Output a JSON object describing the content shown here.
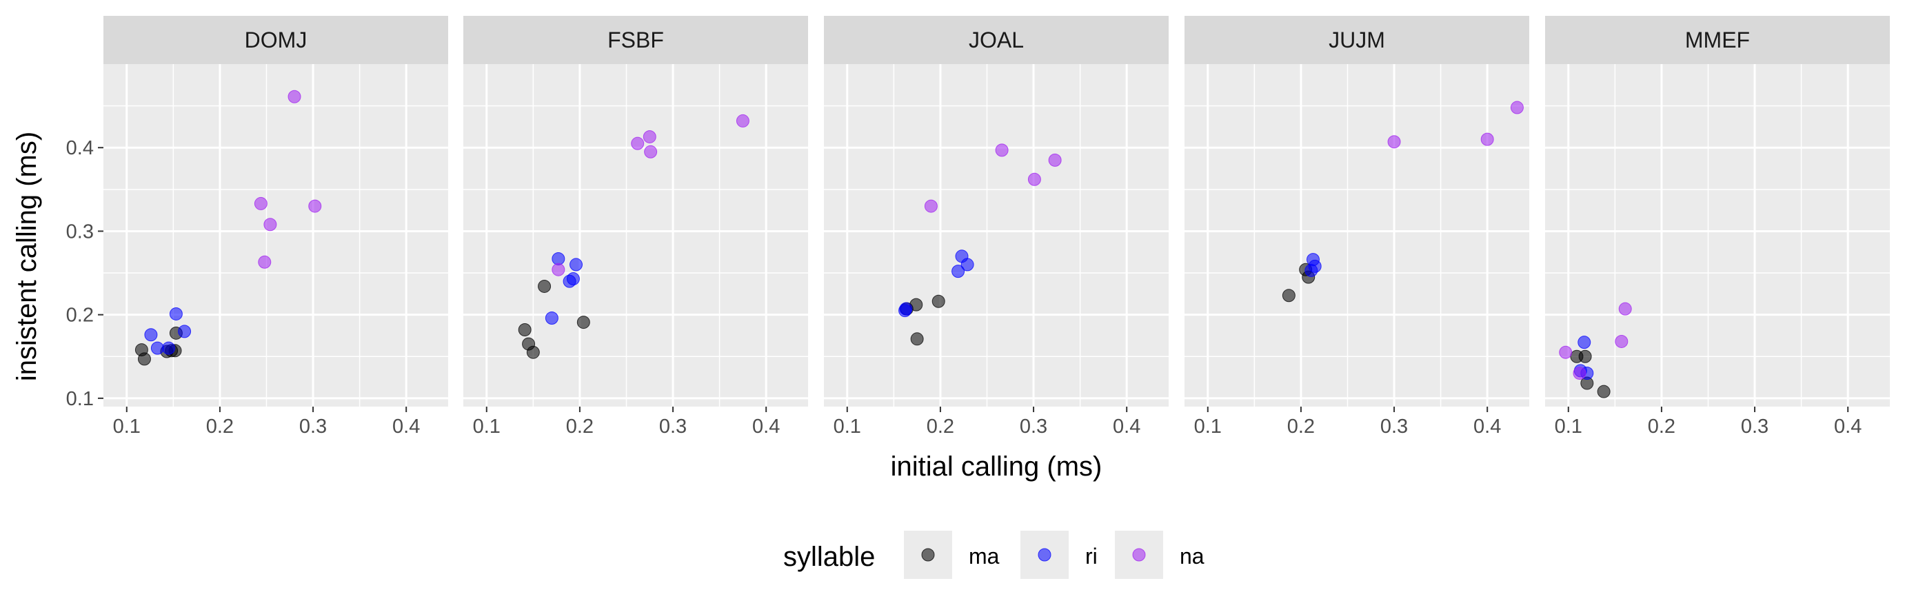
{
  "chart_data": {
    "type": "scatter",
    "xlabel": "initial calling (ms)",
    "ylabel": "insistent calling (ms)",
    "xlim": [
      0.075,
      0.445
    ],
    "ylim": [
      0.09,
      0.5
    ],
    "x_ticks": [
      0.1,
      0.2,
      0.3,
      0.4
    ],
    "x_tick_labels": [
      "0.1",
      "0.2",
      "0.3",
      "0.4"
    ],
    "y_ticks": [
      0.1,
      0.2,
      0.3,
      0.4
    ],
    "y_tick_labels": [
      "0.1",
      "0.2",
      "0.3",
      "0.4"
    ],
    "grid": true,
    "legend": {
      "title": "syllable",
      "placement": "bottom",
      "entries": [
        {
          "key": "ma",
          "label": "ma",
          "color": "#000000"
        },
        {
          "key": "ri",
          "label": "ri",
          "color": "#0000FF"
        },
        {
          "key": "na",
          "label": "na",
          "color": "#A020F0"
        }
      ]
    },
    "panels": [
      {
        "name": "DOMJ",
        "points": [
          {
            "syllable": "ma",
            "x": 0.116,
            "y": 0.158
          },
          {
            "syllable": "ma",
            "x": 0.119,
            "y": 0.147
          },
          {
            "syllable": "ma",
            "x": 0.143,
            "y": 0.156
          },
          {
            "syllable": "ma",
            "x": 0.148,
            "y": 0.157
          },
          {
            "syllable": "ma",
            "x": 0.152,
            "y": 0.157
          },
          {
            "syllable": "ma",
            "x": 0.153,
            "y": 0.178
          },
          {
            "syllable": "ri",
            "x": 0.126,
            "y": 0.176
          },
          {
            "syllable": "ri",
            "x": 0.133,
            "y": 0.16
          },
          {
            "syllable": "ri",
            "x": 0.145,
            "y": 0.16
          },
          {
            "syllable": "ri",
            "x": 0.153,
            "y": 0.201
          },
          {
            "syllable": "ri",
            "x": 0.162,
            "y": 0.18
          },
          {
            "syllable": "na",
            "x": 0.244,
            "y": 0.333
          },
          {
            "syllable": "na",
            "x": 0.248,
            "y": 0.263
          },
          {
            "syllable": "na",
            "x": 0.254,
            "y": 0.308
          },
          {
            "syllable": "na",
            "x": 0.28,
            "y": 0.461
          },
          {
            "syllable": "na",
            "x": 0.302,
            "y": 0.33
          }
        ]
      },
      {
        "name": "FSBF",
        "points": [
          {
            "syllable": "ma",
            "x": 0.141,
            "y": 0.182
          },
          {
            "syllable": "ma",
            "x": 0.145,
            "y": 0.165
          },
          {
            "syllable": "ma",
            "x": 0.15,
            "y": 0.155
          },
          {
            "syllable": "ma",
            "x": 0.162,
            "y": 0.234
          },
          {
            "syllable": "ma",
            "x": 0.204,
            "y": 0.191
          },
          {
            "syllable": "ri",
            "x": 0.17,
            "y": 0.196
          },
          {
            "syllable": "ri",
            "x": 0.177,
            "y": 0.267
          },
          {
            "syllable": "ri",
            "x": 0.189,
            "y": 0.24
          },
          {
            "syllable": "ri",
            "x": 0.193,
            "y": 0.243
          },
          {
            "syllable": "ri",
            "x": 0.196,
            "y": 0.26
          },
          {
            "syllable": "na",
            "x": 0.177,
            "y": 0.254
          },
          {
            "syllable": "na",
            "x": 0.262,
            "y": 0.405
          },
          {
            "syllable": "na",
            "x": 0.275,
            "y": 0.413
          },
          {
            "syllable": "na",
            "x": 0.276,
            "y": 0.395
          },
          {
            "syllable": "na",
            "x": 0.375,
            "y": 0.432
          }
        ]
      },
      {
        "name": "JOAL",
        "points": [
          {
            "syllable": "ma",
            "x": 0.164,
            "y": 0.207
          },
          {
            "syllable": "ma",
            "x": 0.174,
            "y": 0.212
          },
          {
            "syllable": "ma",
            "x": 0.175,
            "y": 0.171
          },
          {
            "syllable": "ma",
            "x": 0.198,
            "y": 0.216
          },
          {
            "syllable": "ri",
            "x": 0.162,
            "y": 0.205
          },
          {
            "syllable": "ri",
            "x": 0.163,
            "y": 0.207
          },
          {
            "syllable": "ri",
            "x": 0.219,
            "y": 0.252
          },
          {
            "syllable": "ri",
            "x": 0.223,
            "y": 0.27
          },
          {
            "syllable": "ri",
            "x": 0.229,
            "y": 0.26
          },
          {
            "syllable": "na",
            "x": 0.19,
            "y": 0.33
          },
          {
            "syllable": "na",
            "x": 0.266,
            "y": 0.397
          },
          {
            "syllable": "na",
            "x": 0.301,
            "y": 0.362
          },
          {
            "syllable": "na",
            "x": 0.323,
            "y": 0.385
          }
        ]
      },
      {
        "name": "JUJM",
        "points": [
          {
            "syllable": "ma",
            "x": 0.187,
            "y": 0.223
          },
          {
            "syllable": "ma",
            "x": 0.205,
            "y": 0.254
          },
          {
            "syllable": "ma",
            "x": 0.208,
            "y": 0.245
          },
          {
            "syllable": "ri",
            "x": 0.211,
            "y": 0.253
          },
          {
            "syllable": "ri",
            "x": 0.213,
            "y": 0.266
          },
          {
            "syllable": "ri",
            "x": 0.215,
            "y": 0.258
          },
          {
            "syllable": "na",
            "x": 0.3,
            "y": 0.407
          },
          {
            "syllable": "na",
            "x": 0.4,
            "y": 0.41
          },
          {
            "syllable": "na",
            "x": 0.432,
            "y": 0.448
          }
        ]
      },
      {
        "name": "MMEF",
        "points": [
          {
            "syllable": "ma",
            "x": 0.109,
            "y": 0.15
          },
          {
            "syllable": "ma",
            "x": 0.118,
            "y": 0.15
          },
          {
            "syllable": "ma",
            "x": 0.12,
            "y": 0.118
          },
          {
            "syllable": "ma",
            "x": 0.138,
            "y": 0.108
          },
          {
            "syllable": "ri",
            "x": 0.113,
            "y": 0.133
          },
          {
            "syllable": "ri",
            "x": 0.117,
            "y": 0.167
          },
          {
            "syllable": "ri",
            "x": 0.12,
            "y": 0.13
          },
          {
            "syllable": "na",
            "x": 0.097,
            "y": 0.155
          },
          {
            "syllable": "na",
            "x": 0.112,
            "y": 0.13
          },
          {
            "syllable": "na",
            "x": 0.157,
            "y": 0.168
          },
          {
            "syllable": "na",
            "x": 0.161,
            "y": 0.207
          }
        ]
      }
    ]
  }
}
